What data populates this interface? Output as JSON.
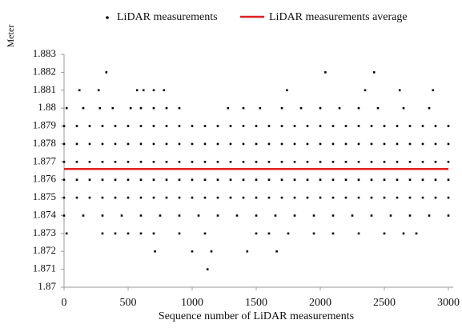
{
  "chart_data": {
    "type": "scatter",
    "xlabel": "Sequence number of LiDAR measurements",
    "ylabel": "Meter",
    "xlim": [
      0,
      3000
    ],
    "xticks": [
      0,
      500,
      1000,
      1500,
      2000,
      2500,
      3000
    ],
    "ylim": [
      1.87,
      1.883
    ],
    "yticks": [
      1.87,
      1.871,
      1.872,
      1.873,
      1.874,
      1.875,
      1.876,
      1.877,
      1.878,
      1.879,
      1.88,
      1.881,
      1.882,
      1.883
    ],
    "grid": false,
    "legend": "top",
    "series": [
      {
        "name": "LiDAR measurements",
        "color": "#000000",
        "kind": "points",
        "x": [
          0,
          100,
          200,
          300,
          400,
          500,
          600,
          700,
          800,
          900,
          1000,
          1100,
          1200,
          1300,
          1400,
          1500,
          1600,
          1700,
          1800,
          1900,
          2000,
          2100,
          2200,
          2300,
          2400,
          2500,
          2600,
          2700,
          2800,
          2900,
          3000,
          0,
          100,
          200,
          300,
          400,
          500,
          600,
          700,
          800,
          900,
          1000,
          1100,
          1200,
          1300,
          1400,
          1500,
          1600,
          1700,
          1800,
          1900,
          2000,
          2100,
          2200,
          2300,
          2400,
          2500,
          2600,
          2700,
          2800,
          2900,
          3000,
          0,
          100,
          200,
          300,
          400,
          500,
          600,
          700,
          800,
          900,
          1000,
          1100,
          1200,
          1300,
          1400,
          1500,
          1600,
          1700,
          1800,
          1900,
          2000,
          2100,
          2200,
          2300,
          2400,
          2500,
          2600,
          2700,
          2800,
          2900,
          3000,
          0,
          100,
          200,
          300,
          400,
          500,
          600,
          700,
          800,
          900,
          1000,
          1100,
          1200,
          1300,
          1400,
          1500,
          1600,
          1700,
          1800,
          1900,
          2000,
          2100,
          2200,
          2300,
          2400,
          2500,
          2600,
          2700,
          2800,
          2900,
          3000,
          0,
          100,
          200,
          300,
          400,
          500,
          600,
          700,
          800,
          900,
          1000,
          1100,
          1200,
          1300,
          1400,
          1500,
          1600,
          1700,
          1800,
          1900,
          2000,
          2100,
          2200,
          2300,
          2400,
          2500,
          2600,
          2700,
          2800,
          2900,
          3000,
          0,
          150,
          300,
          450,
          600,
          750,
          900,
          1050,
          1200,
          1350,
          1500,
          1650,
          1800,
          1950,
          2100,
          2250,
          2400,
          2550,
          2700,
          2850,
          3000,
          20,
          150,
          280,
          380,
          520,
          600,
          700,
          800,
          900,
          1280,
          1400,
          1530,
          1700,
          1850,
          2000,
          2150,
          2300,
          2450,
          2650,
          2850,
          20,
          300,
          400,
          500,
          600,
          700,
          900,
          1100,
          1500,
          1600,
          1750,
          1950,
          2100,
          2300,
          2500,
          2650,
          2750,
          120,
          270,
          570,
          620,
          700,
          780,
          1740,
          2350,
          2620,
          2880,
          330,
          2040,
          2420,
          710,
          1000,
          1150,
          1430,
          1660,
          1120
        ],
        "values": [
          1.879,
          1.879,
          1.879,
          1.879,
          1.879,
          1.879,
          1.879,
          1.879,
          1.879,
          1.879,
          1.879,
          1.879,
          1.879,
          1.879,
          1.879,
          1.879,
          1.879,
          1.879,
          1.879,
          1.879,
          1.879,
          1.879,
          1.879,
          1.879,
          1.879,
          1.879,
          1.879,
          1.879,
          1.879,
          1.879,
          1.879,
          1.878,
          1.878,
          1.878,
          1.878,
          1.878,
          1.878,
          1.878,
          1.878,
          1.878,
          1.878,
          1.878,
          1.878,
          1.878,
          1.878,
          1.878,
          1.878,
          1.878,
          1.878,
          1.878,
          1.878,
          1.878,
          1.878,
          1.878,
          1.878,
          1.878,
          1.878,
          1.878,
          1.878,
          1.878,
          1.878,
          1.878,
          1.877,
          1.877,
          1.877,
          1.877,
          1.877,
          1.877,
          1.877,
          1.877,
          1.877,
          1.877,
          1.877,
          1.877,
          1.877,
          1.877,
          1.877,
          1.877,
          1.877,
          1.877,
          1.877,
          1.877,
          1.877,
          1.877,
          1.877,
          1.877,
          1.877,
          1.877,
          1.877,
          1.877,
          1.877,
          1.877,
          1.877,
          1.876,
          1.876,
          1.876,
          1.876,
          1.876,
          1.876,
          1.876,
          1.876,
          1.876,
          1.876,
          1.876,
          1.876,
          1.876,
          1.876,
          1.876,
          1.876,
          1.876,
          1.876,
          1.876,
          1.876,
          1.876,
          1.876,
          1.876,
          1.876,
          1.876,
          1.876,
          1.876,
          1.876,
          1.876,
          1.876,
          1.876,
          1.875,
          1.875,
          1.875,
          1.875,
          1.875,
          1.875,
          1.875,
          1.875,
          1.875,
          1.875,
          1.875,
          1.875,
          1.875,
          1.875,
          1.875,
          1.875,
          1.875,
          1.875,
          1.875,
          1.875,
          1.875,
          1.875,
          1.875,
          1.875,
          1.875,
          1.875,
          1.875,
          1.875,
          1.875,
          1.875,
          1.875,
          1.874,
          1.874,
          1.874,
          1.874,
          1.874,
          1.874,
          1.874,
          1.874,
          1.874,
          1.874,
          1.874,
          1.874,
          1.874,
          1.874,
          1.874,
          1.874,
          1.874,
          1.874,
          1.874,
          1.874,
          1.874,
          1.88,
          1.88,
          1.88,
          1.88,
          1.88,
          1.88,
          1.88,
          1.88,
          1.88,
          1.88,
          1.88,
          1.88,
          1.88,
          1.88,
          1.88,
          1.88,
          1.88,
          1.88,
          1.88,
          1.88,
          1.873,
          1.873,
          1.873,
          1.873,
          1.873,
          1.873,
          1.873,
          1.873,
          1.873,
          1.873,
          1.873,
          1.873,
          1.873,
          1.873,
          1.873,
          1.873,
          1.873,
          1.881,
          1.881,
          1.881,
          1.881,
          1.881,
          1.881,
          1.881,
          1.881,
          1.881,
          1.881,
          1.882,
          1.882,
          1.882,
          1.872,
          1.872,
          1.872,
          1.872,
          1.872,
          1.871
        ]
      },
      {
        "name": "LiDAR measurements average",
        "color": "#e02020",
        "kind": "line",
        "x": [
          0,
          3000
        ],
        "values": [
          1.8766,
          1.8766
        ]
      }
    ]
  }
}
